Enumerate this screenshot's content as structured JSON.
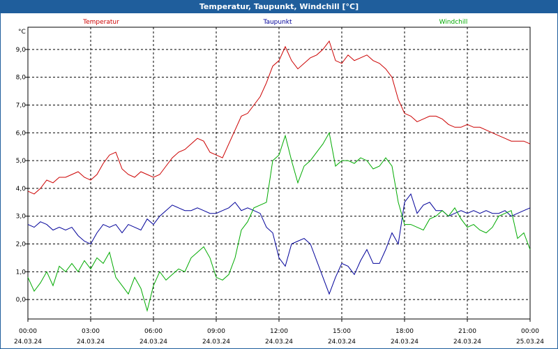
{
  "window": {
    "title": "Temperatur, Taupunkt, Windchill [°C]"
  },
  "chart_data": {
    "type": "line",
    "title": "Temperatur, Taupunkt, Windchill [°C]",
    "ylabel": "°C",
    "xlabel": "",
    "ylim": [
      -0.7,
      9.8
    ],
    "xlim": [
      0,
      24
    ],
    "grid": true,
    "y_ticks": [
      "0,0",
      "1,0",
      "2,0",
      "3,0",
      "4,0",
      "5,0",
      "6,0",
      "7,0",
      "8,0",
      "9,0"
    ],
    "x_ticks": [
      {
        "time": "00:00",
        "date": "24.03.24"
      },
      {
        "time": "03:00",
        "date": "24.03.24"
      },
      {
        "time": "06:00",
        "date": "24.03.24"
      },
      {
        "time": "09:00",
        "date": "24.03.24"
      },
      {
        "time": "12:00",
        "date": "24.03.24"
      },
      {
        "time": "15:00",
        "date": "24.03.24"
      },
      {
        "time": "18:00",
        "date": "24.03.24"
      },
      {
        "time": "21:00",
        "date": "24.03.24"
      },
      {
        "time": "00:00",
        "date": "25.03.24"
      }
    ],
    "series": [
      {
        "name": "Temperatur",
        "color": "#cc0000",
        "x": [
          0,
          0.3,
          0.6,
          0.9,
          1.2,
          1.5,
          1.8,
          2.1,
          2.4,
          2.7,
          3.0,
          3.3,
          3.6,
          3.9,
          4.2,
          4.5,
          4.8,
          5.1,
          5.4,
          5.7,
          6.0,
          6.3,
          6.6,
          6.9,
          7.2,
          7.5,
          7.8,
          8.1,
          8.4,
          8.7,
          9.0,
          9.3,
          9.6,
          9.9,
          10.2,
          10.5,
          10.8,
          11.1,
          11.4,
          11.7,
          12.0,
          12.3,
          12.6,
          12.9,
          13.2,
          13.5,
          13.8,
          14.1,
          14.4,
          14.7,
          15.0,
          15.3,
          15.6,
          15.9,
          16.2,
          16.5,
          16.8,
          17.1,
          17.4,
          17.7,
          18.0,
          18.3,
          18.6,
          18.9,
          19.2,
          19.5,
          19.8,
          20.1,
          20.4,
          20.7,
          21.0,
          21.3,
          21.6,
          21.9,
          22.2,
          22.5,
          22.8,
          23.1,
          23.4,
          23.7,
          24.0
        ],
        "values": [
          3.9,
          3.8,
          4.0,
          4.3,
          4.2,
          4.4,
          4.4,
          4.5,
          4.6,
          4.4,
          4.3,
          4.5,
          4.9,
          5.2,
          5.3,
          4.7,
          4.5,
          4.4,
          4.6,
          4.5,
          4.4,
          4.5,
          4.8,
          5.1,
          5.3,
          5.4,
          5.6,
          5.8,
          5.7,
          5.3,
          5.2,
          5.1,
          5.6,
          6.1,
          6.6,
          6.7,
          7.0,
          7.3,
          7.8,
          8.4,
          8.6,
          9.1,
          8.6,
          8.3,
          8.5,
          8.7,
          8.8,
          9.0,
          9.3,
          8.6,
          8.5,
          8.8,
          8.6,
          8.7,
          8.8,
          8.6,
          8.5,
          8.3,
          8.0,
          7.2,
          6.7,
          6.6,
          6.4,
          6.5,
          6.6,
          6.6,
          6.5,
          6.3,
          6.2,
          6.2,
          6.3,
          6.2,
          6.2,
          6.1,
          6.0,
          5.9,
          5.8,
          5.7,
          5.7,
          5.7,
          5.6
        ]
      },
      {
        "name": "Taupunkt",
        "color": "#000099",
        "x": [
          0,
          0.3,
          0.6,
          0.9,
          1.2,
          1.5,
          1.8,
          2.1,
          2.4,
          2.7,
          3.0,
          3.3,
          3.6,
          3.9,
          4.2,
          4.5,
          4.8,
          5.1,
          5.4,
          5.7,
          6.0,
          6.3,
          6.6,
          6.9,
          7.2,
          7.5,
          7.8,
          8.1,
          8.4,
          8.7,
          9.0,
          9.3,
          9.6,
          9.9,
          10.2,
          10.5,
          10.8,
          11.1,
          11.4,
          11.7,
          12.0,
          12.3,
          12.6,
          12.9,
          13.2,
          13.5,
          13.8,
          14.1,
          14.4,
          14.7,
          15.0,
          15.3,
          15.6,
          15.9,
          16.2,
          16.5,
          16.8,
          17.1,
          17.4,
          17.7,
          18.0,
          18.3,
          18.6,
          18.9,
          19.2,
          19.5,
          19.8,
          20.1,
          20.4,
          20.7,
          21.0,
          21.3,
          21.6,
          21.9,
          22.2,
          22.5,
          22.8,
          23.1,
          23.4,
          23.7,
          24.0
        ],
        "values": [
          2.7,
          2.6,
          2.8,
          2.7,
          2.5,
          2.6,
          2.5,
          2.6,
          2.3,
          2.1,
          2.0,
          2.4,
          2.7,
          2.6,
          2.7,
          2.4,
          2.7,
          2.6,
          2.5,
          2.9,
          2.7,
          3.0,
          3.2,
          3.4,
          3.3,
          3.2,
          3.2,
          3.3,
          3.2,
          3.1,
          3.1,
          3.2,
          3.3,
          3.5,
          3.2,
          3.3,
          3.2,
          3.1,
          2.6,
          2.4,
          1.5,
          1.2,
          2.0,
          2.1,
          2.2,
          2.0,
          1.4,
          0.8,
          0.2,
          0.8,
          1.3,
          1.2,
          0.9,
          1.4,
          1.8,
          1.3,
          1.3,
          1.8,
          2.4,
          2.0,
          3.5,
          3.8,
          3.1,
          3.4,
          3.5,
          3.2,
          3.2,
          3.0,
          3.1,
          3.2,
          3.1,
          3.2,
          3.1,
          3.2,
          3.1,
          3.1,
          3.2,
          3.0,
          3.1,
          3.2,
          3.3
        ]
      },
      {
        "name": "Windchill",
        "color": "#00aa00",
        "x": [
          0,
          0.3,
          0.6,
          0.9,
          1.2,
          1.5,
          1.8,
          2.1,
          2.4,
          2.7,
          3.0,
          3.3,
          3.6,
          3.9,
          4.2,
          4.5,
          4.8,
          5.1,
          5.4,
          5.7,
          6.0,
          6.3,
          6.6,
          6.9,
          7.2,
          7.5,
          7.8,
          8.1,
          8.4,
          8.7,
          9.0,
          9.3,
          9.6,
          9.9,
          10.2,
          10.5,
          10.8,
          11.1,
          11.4,
          11.7,
          12.0,
          12.3,
          12.6,
          12.9,
          13.2,
          13.5,
          13.8,
          14.1,
          14.4,
          14.7,
          15.0,
          15.3,
          15.6,
          15.9,
          16.2,
          16.5,
          16.8,
          17.1,
          17.4,
          17.7,
          18.0,
          18.3,
          18.6,
          18.9,
          19.2,
          19.5,
          19.8,
          20.1,
          20.4,
          20.7,
          21.0,
          21.3,
          21.6,
          21.9,
          22.2,
          22.5,
          22.8,
          23.1,
          23.4,
          23.7,
          24.0
        ],
        "values": [
          0.8,
          0.3,
          0.6,
          1.0,
          0.5,
          1.2,
          1.0,
          1.3,
          1.0,
          1.4,
          1.1,
          1.5,
          1.3,
          1.7,
          0.8,
          0.5,
          0.2,
          0.8,
          0.4,
          -0.4,
          0.5,
          1.0,
          0.7,
          0.9,
          1.1,
          1.0,
          1.5,
          1.7,
          1.9,
          1.5,
          0.8,
          0.7,
          0.9,
          1.5,
          2.5,
          2.8,
          3.3,
          3.4,
          3.5,
          5.0,
          5.2,
          5.9,
          5.0,
          4.2,
          4.8,
          5.0,
          5.3,
          5.6,
          6.0,
          4.8,
          5.0,
          5.0,
          4.9,
          5.1,
          5.0,
          4.7,
          4.8,
          5.1,
          4.8,
          3.5,
          2.7,
          2.7,
          2.6,
          2.5,
          2.9,
          3.0,
          3.2,
          3.0,
          3.3,
          2.9,
          2.6,
          2.7,
          2.5,
          2.4,
          2.6,
          3.0,
          3.1,
          3.2,
          2.2,
          2.4,
          1.8
        ]
      }
    ],
    "legend": "top (spread across plot)"
  }
}
